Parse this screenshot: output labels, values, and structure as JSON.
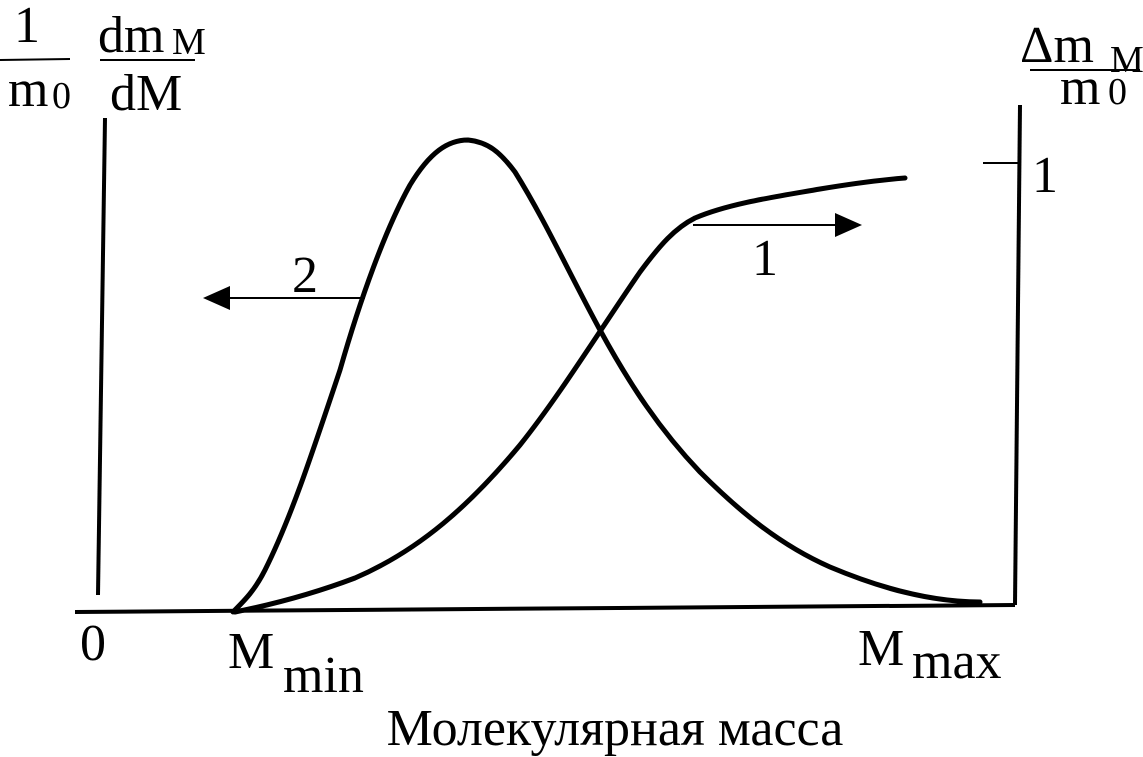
{
  "left_label": {
    "fraction1": {
      "num": "1",
      "den": "m",
      "den_sub": "0"
    },
    "fraction2": {
      "num": "dm",
      "num_sub": "M",
      "den": "dM"
    }
  },
  "right_label": {
    "num": "Δm",
    "num_sub": "M",
    "den": "m",
    "den_sub": "0"
  },
  "right_tick": "1",
  "origin": "0",
  "x_min": {
    "main": "M",
    "sub": "min"
  },
  "x_max": {
    "main": "M",
    "sub": "max"
  },
  "curves": [
    {
      "label": "2"
    },
    {
      "label": "1"
    }
  ],
  "x_axis_title": "Молекулярная масса"
}
